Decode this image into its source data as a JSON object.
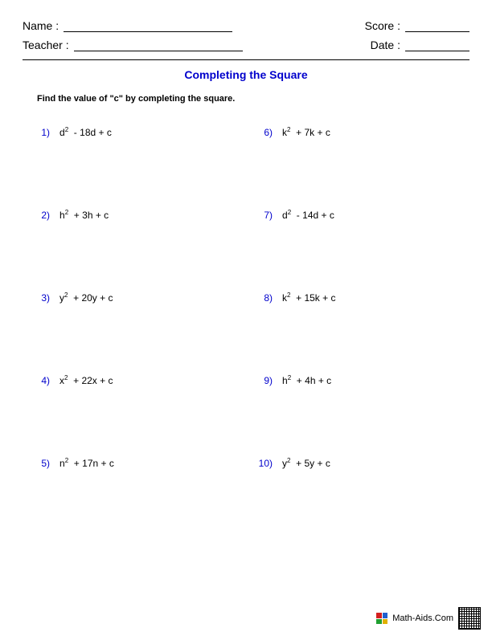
{
  "colors": {
    "accent": "#0000cc",
    "text": "#000000",
    "background": "#ffffff"
  },
  "header": {
    "name_label": "Name :",
    "teacher_label": "Teacher :",
    "score_label": "Score :",
    "date_label": "Date :"
  },
  "title": "Completing the Square",
  "instructions": "Find the value of \"c\" by completing the square.",
  "problems": [
    {
      "n": "1)",
      "var": "d",
      "coef": "- 18d"
    },
    {
      "n": "6)",
      "var": "k",
      "coef": "+ 7k"
    },
    {
      "n": "2)",
      "var": "h",
      "coef": "+ 3h"
    },
    {
      "n": "7)",
      "var": "d",
      "coef": "- 14d"
    },
    {
      "n": "3)",
      "var": "y",
      "coef": "+ 20y"
    },
    {
      "n": "8)",
      "var": "k",
      "coef": "+ 15k"
    },
    {
      "n": "4)",
      "var": "x",
      "coef": "+ 22x"
    },
    {
      "n": "9)",
      "var": "h",
      "coef": "+ 4h"
    },
    {
      "n": "5)",
      "var": "n",
      "coef": "+ 17n"
    },
    {
      "n": "10)",
      "var": "y",
      "coef": "+ 5y"
    }
  ],
  "footer": {
    "site": "Math-Aids.Com",
    "icon_colors": [
      "#d42020",
      "#2060d0",
      "#20a030",
      "#e0b000"
    ]
  }
}
